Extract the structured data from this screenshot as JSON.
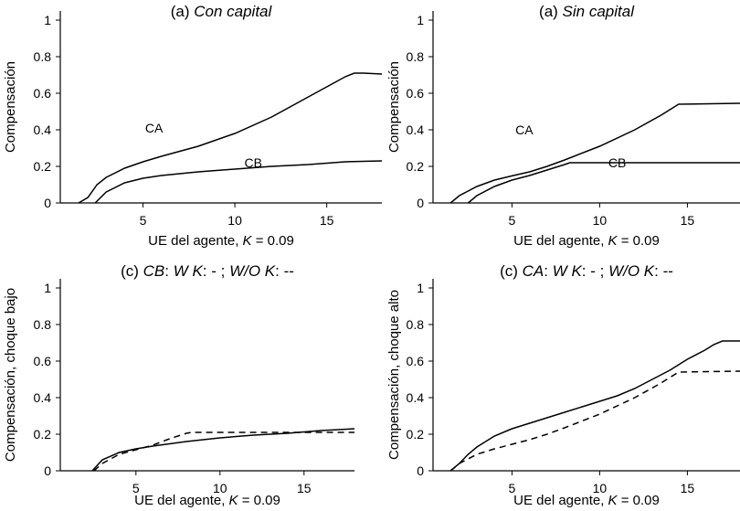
{
  "chart_data": [
    {
      "type": "line",
      "title": "(a) Con capital",
      "title_prefix": "(a) ",
      "title_italic": "Con capital",
      "xlabel_prefix": "UE del agente, ",
      "xlabel_italic": "K",
      "xlabel_suffix": " = 0.09",
      "ylabel": "Compensación",
      "xlim": [
        0.5,
        18
      ],
      "ylim": [
        0,
        1.05
      ],
      "xticks": [
        5,
        10,
        15
      ],
      "yticks": [
        0,
        0.2,
        0.4,
        0.6,
        0.8,
        1
      ],
      "ytick_labels": [
        "0",
        "0.2",
        "0.4",
        "0.6",
        "0.8",
        "1"
      ],
      "series": [
        {
          "name": "CA",
          "style": "solid",
          "x": [
            1.5,
            2,
            2.5,
            3,
            4,
            5,
            6,
            8,
            10,
            12,
            14,
            15,
            16,
            16.5,
            17,
            18
          ],
          "y": [
            0,
            0.03,
            0.1,
            0.14,
            0.19,
            0.225,
            0.255,
            0.31,
            0.38,
            0.47,
            0.58,
            0.635,
            0.69,
            0.71,
            0.71,
            0.705
          ]
        },
        {
          "name": "CB",
          "style": "solid",
          "x": [
            2.4,
            3,
            4,
            5,
            6,
            8,
            10,
            12,
            14,
            16,
            18
          ],
          "y": [
            0,
            0.06,
            0.11,
            0.135,
            0.15,
            0.17,
            0.185,
            0.2,
            0.21,
            0.225,
            0.23
          ]
        }
      ],
      "annotations": [
        {
          "text": "CA",
          "x": 5.6,
          "y": 0.41
        },
        {
          "text": "CB",
          "x": 11,
          "y": 0.22
        }
      ]
    },
    {
      "type": "line",
      "title": "(a) Sin capital",
      "title_prefix": "(a) ",
      "title_italic": "Sin capital",
      "xlabel_prefix": "UE del agente, ",
      "xlabel_italic": "K",
      "xlabel_suffix": " = 0.09",
      "ylabel": "Compensación",
      "xlim": [
        0.5,
        18
      ],
      "ylim": [
        0,
        1.05
      ],
      "xticks": [
        5,
        10,
        15
      ],
      "yticks": [
        0,
        0.2,
        0.4,
        0.6,
        0.8,
        1
      ],
      "ytick_labels": [
        "0",
        "0.2",
        "0.4",
        "0.6",
        "0.8",
        "1"
      ],
      "series": [
        {
          "name": "CA",
          "style": "solid",
          "x": [
            1.5,
            2,
            3,
            4,
            5,
            6,
            7,
            8,
            10,
            12,
            13.5,
            14.5,
            18
          ],
          "y": [
            0,
            0.04,
            0.09,
            0.125,
            0.148,
            0.17,
            0.2,
            0.235,
            0.31,
            0.4,
            0.48,
            0.54,
            0.545
          ]
        },
        {
          "name": "CB",
          "style": "solid",
          "x": [
            2.5,
            3,
            4,
            5,
            6,
            7,
            8,
            8.3,
            18
          ],
          "y": [
            0,
            0.04,
            0.09,
            0.125,
            0.15,
            0.18,
            0.21,
            0.22,
            0.22
          ]
        }
      ],
      "annotations": [
        {
          "text": "CA",
          "x": 5.7,
          "y": 0.4
        },
        {
          "text": "CB",
          "x": 11,
          "y": 0.22
        }
      ]
    },
    {
      "type": "line",
      "title": "(c) CB: W K: - ; W/O K: --",
      "title_parts": [
        {
          "t": "(c) ",
          "i": false
        },
        {
          "t": "CB",
          "i": true
        },
        {
          "t": ": ",
          "i": false
        },
        {
          "t": "W K",
          "i": true
        },
        {
          "t": ": - ; ",
          "i": false
        },
        {
          "t": "W/O K",
          "i": true
        },
        {
          "t": ": --",
          "i": false
        }
      ],
      "xlabel_prefix": "UE del agente, ",
      "xlabel_italic": "K",
      "xlabel_suffix": " = 0.09",
      "ylabel": "Compensación, choque bajo",
      "xlim": [
        0.5,
        18
      ],
      "ylim": [
        0,
        1.05
      ],
      "xticks": [
        5,
        10,
        15
      ],
      "yticks": [
        0,
        0.2,
        0.4,
        0.6,
        0.8,
        1
      ],
      "ytick_labels": [
        "0",
        "0.2",
        "0.4",
        "0.6",
        "0.8",
        "1"
      ],
      "series": [
        {
          "name": "W K",
          "style": "solid",
          "x": [
            2.4,
            3,
            4,
            5,
            6,
            8,
            10,
            12,
            14,
            16,
            18
          ],
          "y": [
            0,
            0.06,
            0.1,
            0.12,
            0.135,
            0.16,
            0.18,
            0.195,
            0.205,
            0.22,
            0.23
          ]
        },
        {
          "name": "W/O K",
          "style": "dashed",
          "x": [
            2.5,
            3,
            4,
            5,
            6,
            7,
            8,
            8.3,
            18
          ],
          "y": [
            0,
            0.04,
            0.09,
            0.115,
            0.14,
            0.175,
            0.205,
            0.21,
            0.21
          ]
        }
      ]
    },
    {
      "type": "line",
      "title": "(c) CA: W K: - ; W/O K: --",
      "title_parts": [
        {
          "t": "(c) ",
          "i": false
        },
        {
          "t": "CA",
          "i": true
        },
        {
          "t": ": ",
          "i": false
        },
        {
          "t": "W K",
          "i": true
        },
        {
          "t": ": - ; ",
          "i": false
        },
        {
          "t": "W/O K",
          "i": true
        },
        {
          "t": ": --",
          "i": false
        }
      ],
      "xlabel_prefix": "UE del agente, ",
      "xlabel_italic": "K",
      "xlabel_suffix": " = 0.09",
      "ylabel": "Compensación, choque alto",
      "xlim": [
        0.5,
        18
      ],
      "ylim": [
        0,
        1.05
      ],
      "xticks": [
        5,
        10,
        15
      ],
      "yticks": [
        0,
        0.2,
        0.4,
        0.6,
        0.8,
        1
      ],
      "ytick_labels": [
        "0",
        "0.2",
        "0.4",
        "0.6",
        "0.8",
        "1"
      ],
      "series": [
        {
          "name": "W K",
          "style": "solid",
          "x": [
            1.5,
            2,
            2.5,
            3,
            4,
            5,
            6,
            8,
            10,
            11,
            12,
            13,
            14,
            15,
            16,
            16.5,
            17,
            18
          ],
          "y": [
            0,
            0.04,
            0.09,
            0.13,
            0.19,
            0.23,
            0.26,
            0.32,
            0.38,
            0.41,
            0.45,
            0.5,
            0.55,
            0.61,
            0.66,
            0.69,
            0.71,
            0.71
          ]
        },
        {
          "name": "W/O K",
          "style": "dashed",
          "x": [
            1.5,
            2,
            3,
            4,
            5,
            6,
            7,
            8,
            10,
            12,
            13.5,
            14.5,
            18
          ],
          "y": [
            0,
            0.04,
            0.09,
            0.12,
            0.145,
            0.17,
            0.2,
            0.235,
            0.31,
            0.4,
            0.48,
            0.54,
            0.545
          ]
        }
      ]
    }
  ]
}
